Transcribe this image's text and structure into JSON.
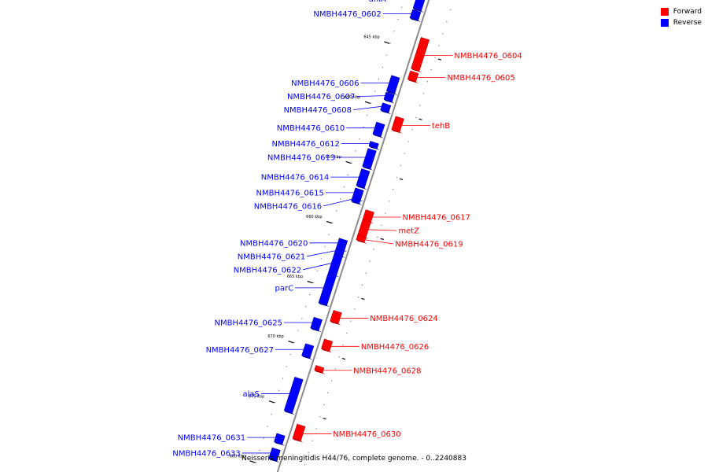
{
  "caption": "Neisseria meningitidis H44/76, complete genome. - 0..2240883",
  "legend": [
    {
      "label": "Forward",
      "color": "#ff0000"
    },
    {
      "label": "Reverse",
      "color": "#0000ff"
    }
  ],
  "colors": {
    "forward": "#ff0000",
    "reverse": "#0000ff",
    "backbone": "#8c8c8c"
  },
  "kbp_ticks": [
    {
      "label": "645 kbp",
      "pos": 645
    },
    {
      "label": "650 kbp",
      "pos": 650
    },
    {
      "label": "655 kbp",
      "pos": 655
    },
    {
      "label": "660 kbp",
      "pos": 660
    },
    {
      "label": "665 kbp",
      "pos": 665
    },
    {
      "label": "670 kbp",
      "pos": 670
    },
    {
      "label": "675 kbp",
      "pos": 675
    },
    {
      "label": "680 kbp",
      "pos": 680
    }
  ],
  "features": [
    {
      "name": "aniA",
      "strand": "reverse",
      "start": 640.2,
      "end": 641.8
    },
    {
      "name": "NMBH4476_0602",
      "strand": "reverse",
      "start": 641.9,
      "end": 642.6
    },
    {
      "name": "NMBH4476_0604",
      "strand": "forward",
      "start": 643.8,
      "end": 646.4
    },
    {
      "name": "NMBH4476_0605",
      "strand": "forward",
      "start": 646.6,
      "end": 647.3
    },
    {
      "name": "NMBH4476_0606",
      "strand": "reverse",
      "start": 647.4,
      "end": 648.7
    },
    {
      "name": "NMBH4476_0607",
      "strand": "reverse",
      "start": 648.8,
      "end": 649.4
    },
    {
      "name": "NMBH4476_0608",
      "strand": "reverse",
      "start": 649.7,
      "end": 650.3
    },
    {
      "name": "tehB",
      "strand": "forward",
      "start": 650.4,
      "end": 651.5
    },
    {
      "name": "NMBH4476_0610",
      "strand": "reverse",
      "start": 651.3,
      "end": 652.3
    },
    {
      "name": "NMBH4476_0612",
      "strand": "reverse",
      "start": 652.9,
      "end": 653.3
    },
    {
      "name": "NMBH4476_0613",
      "strand": "reverse",
      "start": 653.5,
      "end": 655.0
    },
    {
      "name": "NMBH4476_0614",
      "strand": "reverse",
      "start": 655.2,
      "end": 656.6
    },
    {
      "name": "NMBH4476_0615",
      "strand": "reverse",
      "start": 656.8,
      "end": 657.6
    },
    {
      "name": "NMBH4476_0616",
      "strand": "reverse",
      "start": 657.6,
      "end": 657.9
    },
    {
      "name": "NMBH4476_0617",
      "strand": "forward",
      "start": 658.2,
      "end": 659.0
    },
    {
      "name": "metZ",
      "strand": "forward",
      "start": 659.0,
      "end": 660.3
    },
    {
      "name": "NMBH4476_0619",
      "strand": "forward",
      "start": 660.3,
      "end": 660.7
    },
    {
      "name": "NMBH4476_0620",
      "strand": "reverse",
      "start": 661.0,
      "end": 661.8
    },
    {
      "name": "NMBH4476_0621",
      "strand": "reverse",
      "start": 661.8,
      "end": 662.3
    },
    {
      "name": "NMBH4476_0622",
      "strand": "reverse",
      "start": 662.3,
      "end": 663.9
    },
    {
      "name": "parC",
      "strand": "reverse",
      "start": 663.9,
      "end": 666.4
    },
    {
      "name": "NMBH4476_0624",
      "strand": "forward",
      "start": 666.6,
      "end": 667.5
    },
    {
      "name": "NMBH4476_0625",
      "strand": "reverse",
      "start": 667.6,
      "end": 668.5
    },
    {
      "name": "NMBH4476_0626",
      "strand": "forward",
      "start": 669.0,
      "end": 669.8
    },
    {
      "name": "NMBH4476_0627",
      "strand": "reverse",
      "start": 669.8,
      "end": 670.8
    },
    {
      "name": "NMBH4476_0628",
      "strand": "forward",
      "start": 671.2,
      "end": 671.6
    },
    {
      "name": "alaS",
      "strand": "reverse",
      "start": 672.6,
      "end": 675.4
    },
    {
      "name": "NMBH4476_0630",
      "strand": "forward",
      "start": 676.1,
      "end": 677.3
    },
    {
      "name": "NMBH4476_0631",
      "strand": "reverse",
      "start": 677.3,
      "end": 678.0
    },
    {
      "name": "NMBH4476_0633",
      "strand": "reverse",
      "start": 678.5,
      "end": 679.4
    },
    {
      "name": "",
      "strand": "forward",
      "start": 680.2,
      "end": 680.6
    }
  ]
}
